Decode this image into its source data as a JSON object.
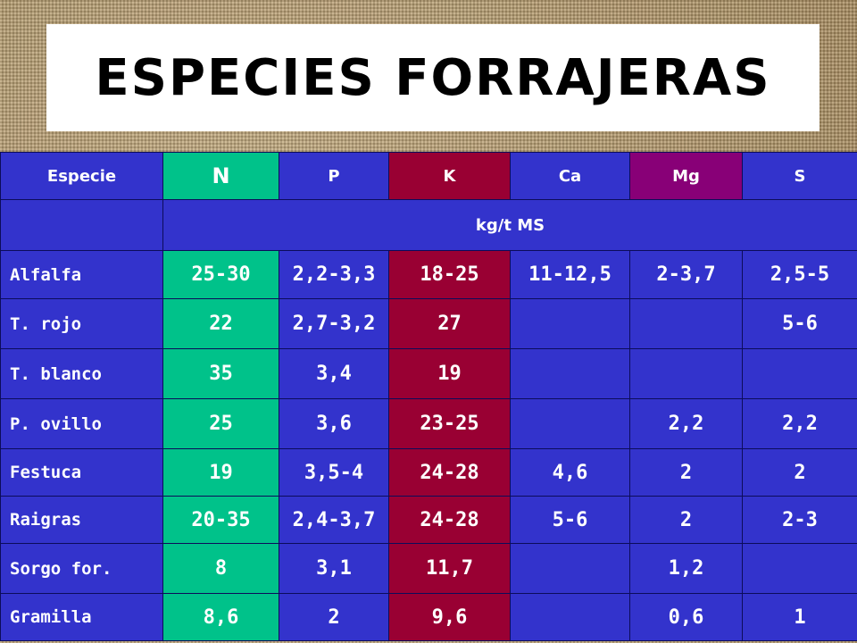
{
  "title": "ESPECIES FORRAJERAS",
  "table": {
    "headers": [
      "Especie",
      "N",
      "P",
      "K",
      "Ca",
      "Mg",
      "S"
    ],
    "unit_label": "kg/t MS",
    "rows": [
      [
        "Alfalfa",
        "25-30",
        "2,2-3,3",
        "18-25",
        "11-12,5",
        "2-3,7",
        "2,5-5"
      ],
      [
        "T. rojo",
        "22",
        "2,7-3,2",
        "27",
        "",
        "",
        "5-6"
      ],
      [
        "T. blanco",
        "35",
        "3,4",
        "19",
        "",
        "",
        ""
      ],
      [
        "P. ovillo",
        "25",
        "3,6",
        "23-25",
        "",
        "2,2",
        "2,2"
      ],
      [
        "Festuca",
        "19",
        "3,5-4",
        "24-28",
        "4,6",
        "2",
        "2"
      ],
      [
        "Raigras",
        "20-35",
        "2,4-3,7",
        "24-28",
        "5-6",
        "2",
        "2-3"
      ],
      [
        "Sorgo for.",
        "8",
        "3,1",
        "11,7",
        "",
        "1,2",
        ""
      ],
      [
        "Gramilla",
        "8,6",
        "2",
        "9,6",
        "",
        "0,6",
        "1"
      ]
    ]
  },
  "colors": {
    "table_blue": "#3333cc",
    "n_column_green": "#00c28a",
    "k_column_red": "#990033",
    "mg_header_purple": "#880077"
  }
}
